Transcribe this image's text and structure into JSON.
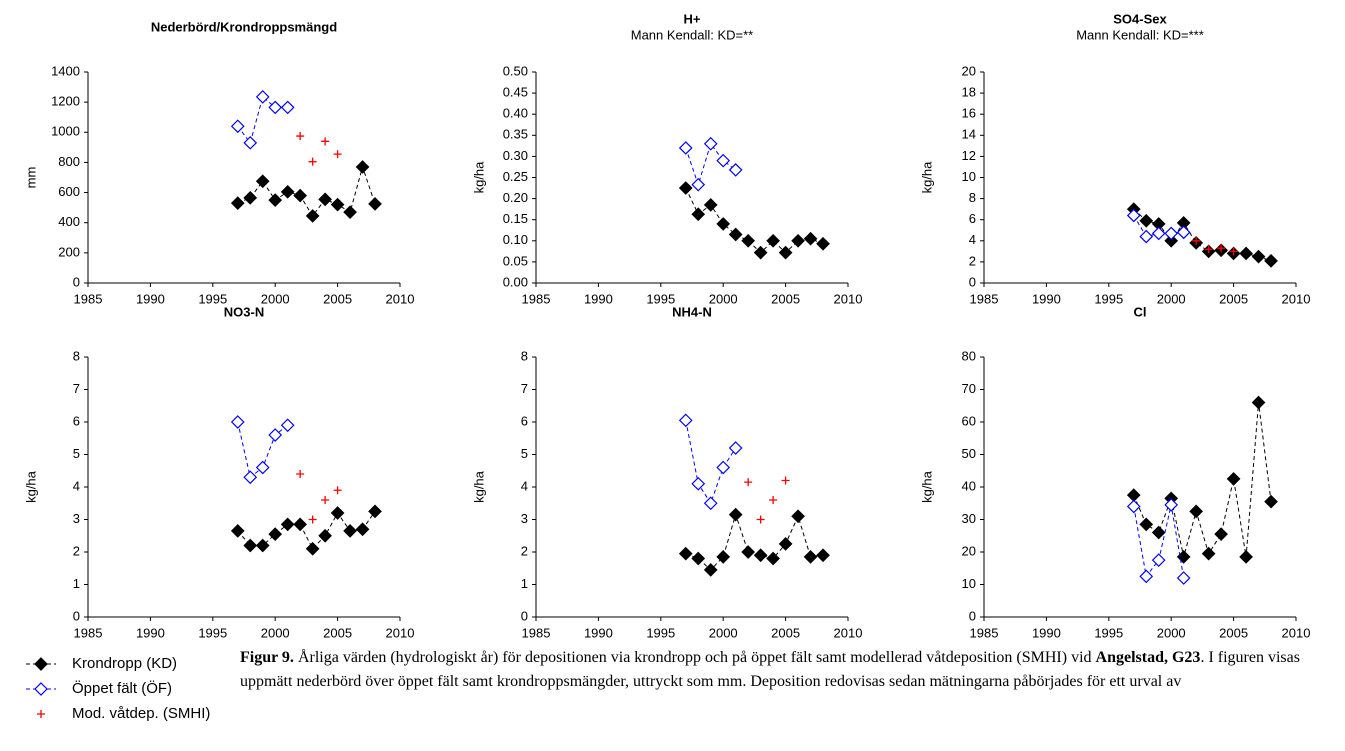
{
  "chart_data": [
    {
      "type": "line",
      "title": "Nederbörd/Krondroppsmängd",
      "ylabel": "mm",
      "x": [
        1997,
        1998,
        1999,
        2000,
        2001,
        2002,
        2003,
        2004,
        2005,
        2006,
        2007,
        2008
      ],
      "series": [
        {
          "name": "Krondropp (KD)",
          "color": "#000000",
          "marker": "diamond-filled",
          "line": "dashed",
          "values": [
            530,
            565,
            675,
            550,
            605,
            580,
            445,
            555,
            520,
            470,
            770,
            525
          ]
        },
        {
          "name": "Öppet fält (ÖF)",
          "color": "#0000ff",
          "marker": "diamond-open",
          "line": "dashed",
          "values": [
            1040,
            930,
            1235,
            1165,
            1165,
            null,
            null,
            null,
            null,
            null,
            null,
            null
          ]
        },
        {
          "name": "Mod. våtdep. (SMHI)",
          "color": "#ff0000",
          "marker": "plus",
          "line": "none",
          "values": [
            null,
            null,
            null,
            null,
            null,
            975,
            805,
            940,
            855,
            null,
            null,
            null
          ]
        }
      ],
      "xlim": [
        1985,
        2010
      ],
      "xticks": [
        1985,
        1990,
        1995,
        2000,
        2005,
        2010
      ],
      "ylim": [
        0,
        1400
      ],
      "yticks": [
        0,
        200,
        400,
        600,
        800,
        1000,
        1200,
        1400
      ]
    },
    {
      "type": "line",
      "title": "H+",
      "subtitle": "Mann Kendall: KD=**",
      "ylabel": "kg/ha",
      "x": [
        1997,
        1998,
        1999,
        2000,
        2001,
        2002,
        2003,
        2004,
        2005,
        2006,
        2007,
        2008
      ],
      "series": [
        {
          "name": "Krondropp (KD)",
          "color": "#000000",
          "marker": "diamond-filled",
          "line": "dashed",
          "values": [
            0.225,
            0.163,
            0.185,
            0.14,
            0.115,
            0.1,
            0.072,
            0.1,
            0.072,
            0.1,
            0.105,
            0.093
          ]
        },
        {
          "name": "Öppet fält (ÖF)",
          "color": "#0000ff",
          "marker": "diamond-open",
          "line": "dashed",
          "values": [
            0.32,
            0.233,
            0.33,
            0.29,
            0.268,
            null,
            null,
            null,
            null,
            null,
            null,
            null
          ]
        }
      ],
      "xlim": [
        1985,
        2010
      ],
      "xticks": [
        1985,
        1990,
        1995,
        2000,
        2005,
        2010
      ],
      "ylim": [
        0,
        0.5
      ],
      "yticks": [
        {
          "value": 0,
          "label": "0.00"
        },
        {
          "value": 0.05,
          "label": "0.05"
        },
        {
          "value": 0.1,
          "label": "0.10"
        },
        {
          "value": 0.15,
          "label": "0.15"
        },
        {
          "value": 0.2,
          "label": "0.20"
        },
        {
          "value": 0.25,
          "label": "0.25"
        },
        {
          "value": 0.3,
          "label": "0.30"
        },
        {
          "value": 0.35,
          "label": "0.35"
        },
        {
          "value": 0.4,
          "label": "0.40"
        },
        {
          "value": 0.45,
          "label": "0.45"
        },
        {
          "value": 0.5,
          "label": "0.50"
        }
      ]
    },
    {
      "type": "line",
      "title": "SO4-Sex",
      "subtitle": "Mann Kendall: KD=***",
      "ylabel": "kg/ha",
      "x": [
        1997,
        1998,
        1999,
        2000,
        2001,
        2002,
        2003,
        2004,
        2005,
        2006,
        2007,
        2008
      ],
      "series": [
        {
          "name": "Krondropp (KD)",
          "color": "#000000",
          "marker": "diamond-filled",
          "line": "dashed",
          "values": [
            7.0,
            5.9,
            5.6,
            4.0,
            5.7,
            3.8,
            3.0,
            3.1,
            2.8,
            2.8,
            2.5,
            2.1
          ]
        },
        {
          "name": "Öppet fält (ÖF)",
          "color": "#0000ff",
          "marker": "diamond-open",
          "line": "dashed",
          "values": [
            6.4,
            4.4,
            4.7,
            4.7,
            4.8,
            null,
            null,
            null,
            null,
            null,
            null,
            null
          ]
        },
        {
          "name": "Mod. våtdep. (SMHI)",
          "color": "#ff0000",
          "marker": "plus",
          "line": "none",
          "values": [
            null,
            null,
            null,
            null,
            null,
            4.0,
            3.2,
            3.3,
            3.0,
            null,
            null,
            null
          ]
        }
      ],
      "xlim": [
        1985,
        2010
      ],
      "xticks": [
        1985,
        1990,
        1995,
        2000,
        2005,
        2010
      ],
      "ylim": [
        0,
        20
      ],
      "yticks": [
        0,
        2,
        4,
        6,
        8,
        10,
        12,
        14,
        16,
        18,
        20
      ]
    },
    {
      "type": "line",
      "title": "NO3-N",
      "ylabel": "kg/ha",
      "x": [
        1997,
        1998,
        1999,
        2000,
        2001,
        2002,
        2003,
        2004,
        2005,
        2006,
        2007,
        2008
      ],
      "series": [
        {
          "name": "Krondropp (KD)",
          "color": "#000000",
          "marker": "diamond-filled",
          "line": "dashed",
          "values": [
            2.65,
            2.2,
            2.2,
            2.55,
            2.85,
            2.85,
            2.1,
            2.5,
            3.2,
            2.65,
            2.7,
            3.25
          ]
        },
        {
          "name": "Öppet fält (ÖF)",
          "color": "#0000ff",
          "marker": "diamond-open",
          "line": "dashed",
          "values": [
            6.0,
            4.3,
            4.6,
            5.6,
            5.9,
            null,
            null,
            null,
            null,
            null,
            null,
            null
          ]
        },
        {
          "name": "Mod. våtdep. (SMHI)",
          "color": "#ff0000",
          "marker": "plus",
          "line": "none",
          "values": [
            null,
            null,
            null,
            null,
            null,
            4.4,
            3.0,
            3.6,
            3.9,
            null,
            null,
            null
          ]
        }
      ],
      "xlim": [
        1985,
        2010
      ],
      "xticks": [
        1985,
        1990,
        1995,
        2000,
        2005,
        2010
      ],
      "ylim": [
        0,
        8
      ],
      "yticks": [
        0,
        1,
        2,
        3,
        4,
        5,
        6,
        7,
        8
      ]
    },
    {
      "type": "line",
      "title": "NH4-N",
      "ylabel": "kg/ha",
      "x": [
        1997,
        1998,
        1999,
        2000,
        2001,
        2002,
        2003,
        2004,
        2005,
        2006,
        2007,
        2008
      ],
      "series": [
        {
          "name": "Krondropp (KD)",
          "color": "#000000",
          "marker": "diamond-filled",
          "line": "dashed",
          "values": [
            1.95,
            1.8,
            1.45,
            1.85,
            3.15,
            2.0,
            1.9,
            1.8,
            2.25,
            3.1,
            1.85,
            1.9
          ]
        },
        {
          "name": "Öppet fält (ÖF)",
          "color": "#0000ff",
          "marker": "diamond-open",
          "line": "dashed",
          "values": [
            6.05,
            4.1,
            3.5,
            4.6,
            5.2,
            null,
            null,
            null,
            null,
            null,
            null,
            null
          ]
        },
        {
          "name": "Mod. våtdep. (SMHI)",
          "color": "#ff0000",
          "marker": "plus",
          "line": "none",
          "values": [
            null,
            null,
            null,
            null,
            null,
            4.15,
            3.0,
            3.6,
            4.2,
            null,
            null,
            null
          ]
        }
      ],
      "xlim": [
        1985,
        2010
      ],
      "xticks": [
        1985,
        1990,
        1995,
        2000,
        2005,
        2010
      ],
      "ylim": [
        0,
        8
      ],
      "yticks": [
        0,
        1,
        2,
        3,
        4,
        5,
        6,
        7,
        8
      ]
    },
    {
      "type": "line",
      "title": "Cl",
      "ylabel": "kg/ha",
      "x": [
        1997,
        1998,
        1999,
        2000,
        2001,
        2002,
        2003,
        2004,
        2005,
        2006,
        2007,
        2008
      ],
      "series": [
        {
          "name": "Krondropp (KD)",
          "color": "#000000",
          "marker": "diamond-filled",
          "line": "dashed",
          "values": [
            37.5,
            28.5,
            26,
            36.5,
            18.5,
            32.5,
            19.5,
            25.5,
            42.5,
            18.5,
            66,
            35.5
          ]
        },
        {
          "name": "Öppet fält (ÖF)",
          "color": "#0000ff",
          "marker": "diamond-open",
          "line": "dashed",
          "values": [
            34,
            12.5,
            17.5,
            34.5,
            12,
            null,
            null,
            null,
            null,
            null,
            null,
            null
          ]
        }
      ],
      "xlim": [
        1985,
        2010
      ],
      "xticks": [
        1985,
        1990,
        1995,
        2000,
        2005,
        2010
      ],
      "ylim": [
        0,
        80
      ],
      "yticks": [
        0,
        10,
        20,
        30,
        40,
        50,
        60,
        70,
        80
      ]
    }
  ],
  "caption": [
    {
      "text": "Figur 9.",
      "bold": true
    },
    {
      "text": " Årliga värden (hydrologiskt år) för depositionen via krondropp och på öppet fält samt modellerad våtdeposition (SMHI) vid ",
      "bold": false
    },
    {
      "text": "Angelstad, G23",
      "bold": true
    },
    {
      "text": ". I figuren visas uppmätt nederbörd över öppet fält samt krondroppsmängder, uttryckt som mm. Deposition redovisas sedan mätningarna påbörjades för ett urval av",
      "bold": false
    }
  ]
}
